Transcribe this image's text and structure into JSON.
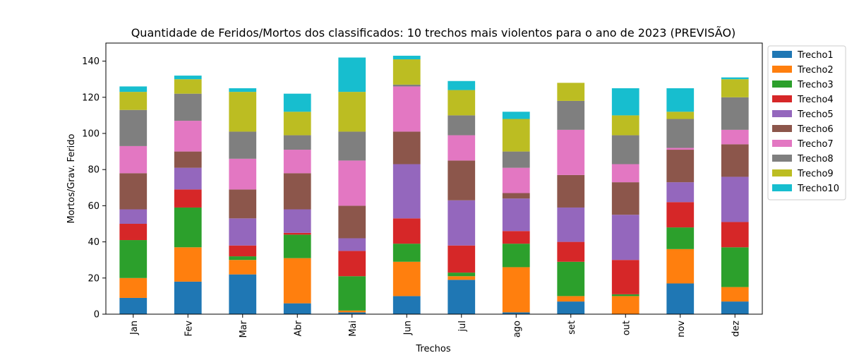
{
  "chart_data": {
    "type": "bar",
    "stacked": true,
    "title": "Quantidade de Feridos/Mortos dos classificados: 10 trechos mais violentos para o ano de 2023 (PREVISÃO)",
    "xlabel": "Trechos",
    "ylabel": "Mortos/Grav. Ferido",
    "ylim": [
      0,
      150
    ],
    "yticks": [
      0,
      20,
      40,
      60,
      80,
      100,
      120,
      140
    ],
    "categories": [
      "Jan",
      "Fev",
      "Mar",
      "Abr",
      "Mai",
      "Jun",
      "jul",
      "ago",
      "set",
      "out",
      "nov",
      "dez"
    ],
    "legend_position": "outside-top-right",
    "series": [
      {
        "name": "Trecho1",
        "color": "#1f77b4",
        "values": [
          9,
          18,
          22,
          6,
          1,
          10,
          19,
          1,
          7,
          0,
          17,
          7
        ]
      },
      {
        "name": "Trecho2",
        "color": "#ff7f0e",
        "values": [
          11,
          19,
          8,
          25,
          1,
          19,
          2,
          25,
          3,
          10,
          19,
          8
        ]
      },
      {
        "name": "Trecho3",
        "color": "#2ca02c",
        "values": [
          21,
          22,
          2,
          13,
          19,
          10,
          2,
          13,
          19,
          1,
          12,
          22
        ]
      },
      {
        "name": "Trecho4",
        "color": "#d62728",
        "values": [
          9,
          10,
          6,
          1,
          14,
          14,
          15,
          7,
          11,
          19,
          14,
          14
        ]
      },
      {
        "name": "Trecho5",
        "color": "#9467bd",
        "values": [
          8,
          12,
          15,
          13,
          7,
          30,
          25,
          18,
          19,
          25,
          11,
          25
        ]
      },
      {
        "name": "Trecho6",
        "color": "#8c564b",
        "values": [
          20,
          9,
          16,
          20,
          18,
          18,
          22,
          3,
          18,
          18,
          18,
          18
        ]
      },
      {
        "name": "Trecho7",
        "color": "#e377c2",
        "values": [
          15,
          17,
          17,
          13,
          25,
          25,
          14,
          14,
          25,
          10,
          1,
          8
        ]
      },
      {
        "name": "Trecho8",
        "color": "#7f7f7f",
        "values": [
          20,
          15,
          15,
          8,
          16,
          1,
          11,
          9,
          16,
          16,
          16,
          18
        ]
      },
      {
        "name": "Trecho9",
        "color": "#bcbd22",
        "values": [
          10,
          8,
          22,
          13,
          22,
          14,
          14,
          18,
          10,
          11,
          4,
          10
        ]
      },
      {
        "name": "Trecho10",
        "color": "#17becf",
        "values": [
          3,
          2,
          2,
          10,
          19,
          2,
          5,
          4,
          0,
          15,
          13,
          1
        ]
      }
    ]
  }
}
